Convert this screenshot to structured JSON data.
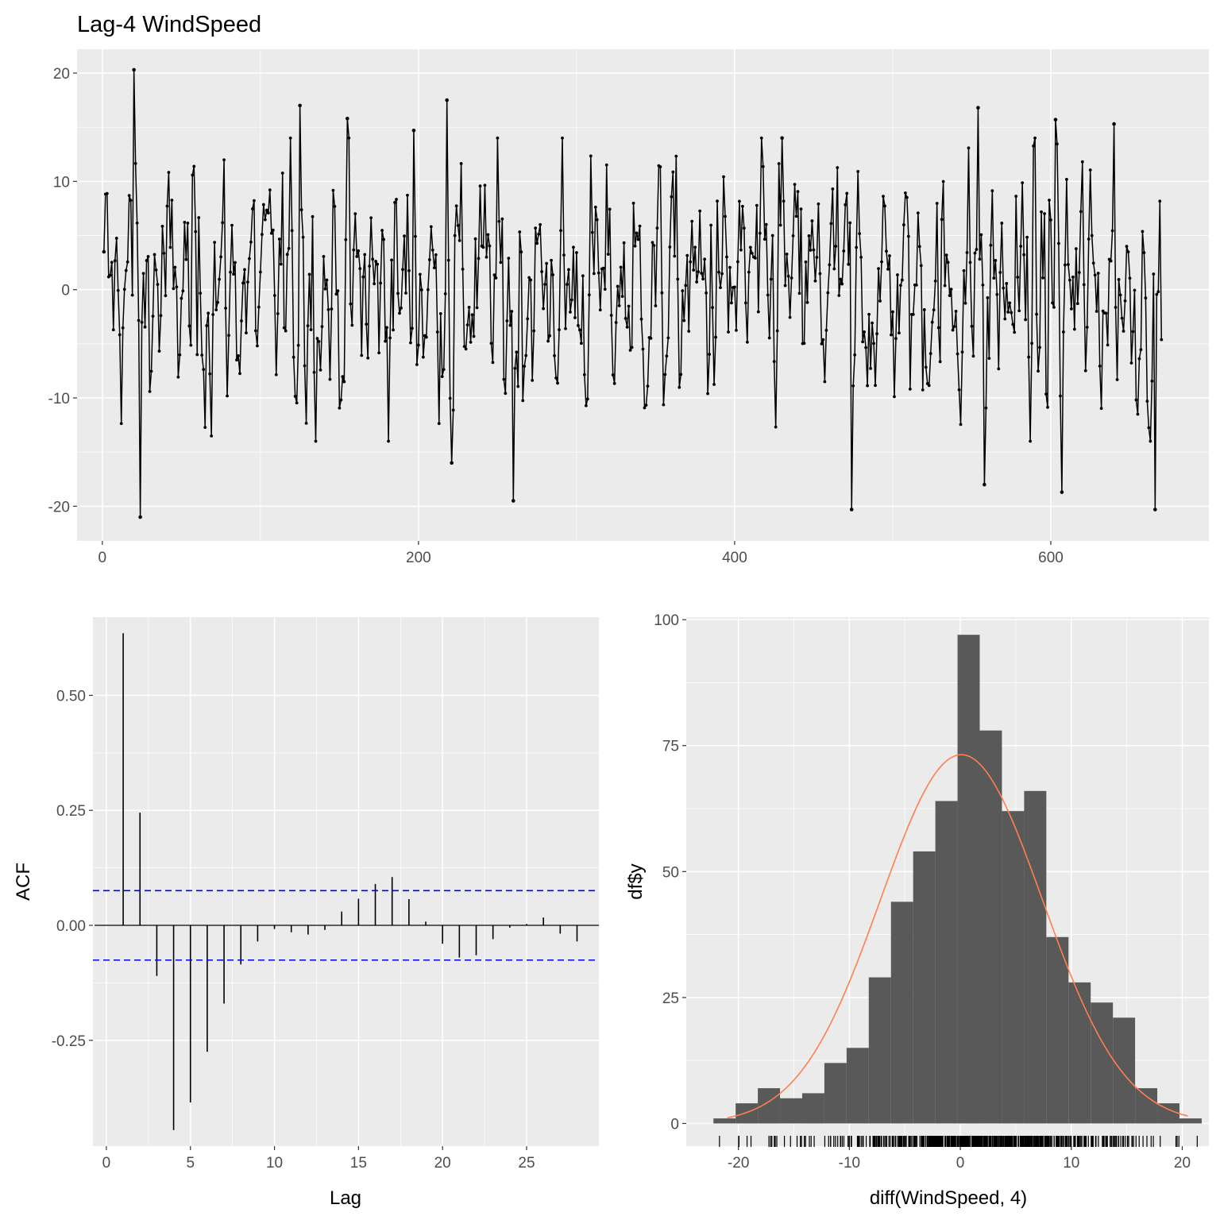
{
  "chart_data": [
    {
      "type": "line",
      "title": "Lag-4 WindSpeed",
      "xlabel": "",
      "ylabel": "",
      "xlim": [
        -16,
        700
      ],
      "ylim": [
        -23.2,
        22.2
      ],
      "x_ticks": [
        0,
        200,
        400,
        600
      ],
      "x_tick_labels": [
        "0",
        "200",
        "400",
        "600"
      ],
      "y_ticks": [
        -20,
        -10,
        0,
        10,
        20
      ],
      "y_tick_labels": [
        "-20",
        "-10",
        "0",
        "10",
        "20"
      ],
      "grid": true,
      "points_marked": true,
      "n_points": 670,
      "x": [
        1,
        20,
        24,
        125,
        155,
        197,
        218,
        221,
        260,
        430,
        474,
        554,
        558,
        603,
        607,
        640,
        666
      ],
      "values": [
        3.5,
        20.3,
        -21,
        17,
        15.8,
        14.7,
        17.5,
        -16,
        -19.5,
        14,
        -20.3,
        16.8,
        -18,
        15.7,
        -18.7,
        15.3,
        -20.3
      ]
    },
    {
      "type": "bar",
      "subtype": "acf",
      "title": "",
      "xlabel": "Lag",
      "ylabel": "ACF",
      "xlim": [
        -0.8,
        29.3
      ],
      "ylim": [
        -0.48,
        0.67
      ],
      "x_ticks": [
        0,
        5,
        10,
        15,
        20,
        25
      ],
      "x_tick_labels": [
        "0",
        "5",
        "10",
        "15",
        "20",
        "25"
      ],
      "y_ticks": [
        -0.25,
        0.0,
        0.25,
        0.5
      ],
      "y_tick_labels": [
        "-0.25",
        "0.00",
        "0.25",
        "0.50"
      ],
      "lags": [
        1,
        2,
        3,
        4,
        5,
        6,
        7,
        8,
        9,
        10,
        11,
        12,
        13,
        14,
        15,
        16,
        17,
        18,
        19,
        20,
        21,
        22,
        23,
        24,
        25,
        26,
        27,
        28
      ],
      "values": [
        0.635,
        0.245,
        -0.11,
        -0.445,
        -0.385,
        -0.275,
        -0.17,
        -0.085,
        -0.035,
        -0.008,
        -0.015,
        -0.02,
        -0.01,
        0.03,
        0.058,
        0.09,
        0.105,
        0.057,
        0.008,
        -0.04,
        -0.07,
        -0.065,
        -0.03,
        -0.005,
        0.003,
        0.017,
        -0.018,
        -0.035
      ],
      "confidence_limit": 0.0755,
      "colors": {
        "bar": "#000000",
        "ci_line": "#0000ff"
      },
      "grid": true
    },
    {
      "type": "bar",
      "subtype": "histogram",
      "title": "",
      "xlabel": "diff(WindSpeed, 4)",
      "ylabel": "df$y",
      "xlim": [
        -24.7,
        22.4
      ],
      "ylim": [
        -4.5,
        100.5
      ],
      "x_ticks": [
        -20,
        -10,
        0,
        10,
        20
      ],
      "x_tick_labels": [
        "-20",
        "-10",
        "0",
        "10",
        "20"
      ],
      "y_ticks": [
        0,
        25,
        50,
        75,
        100
      ],
      "y_tick_labels": [
        "0",
        "25",
        "50",
        "75",
        "100"
      ],
      "bin_edges": [
        -22.25,
        -20.25,
        -18.25,
        -16.25,
        -14.25,
        -12.25,
        -10.25,
        -8.25,
        -6.25,
        -4.25,
        -2.25,
        -0.25,
        1.75,
        3.75,
        5.75,
        7.75,
        9.75,
        11.75,
        13.75,
        15.75,
        17.75,
        19.75,
        21.75
      ],
      "counts": [
        1,
        4,
        7,
        5,
        6,
        12,
        15,
        29,
        44,
        54,
        64,
        97,
        78,
        62,
        66,
        37,
        28,
        24,
        21,
        7,
        4,
        1
      ],
      "normal_curve": {
        "mean": 0.1,
        "sd": 7.3,
        "peak": 73.2,
        "range": [
          -21,
          20.5
        ]
      },
      "colors": {
        "bar": "#595959",
        "curve": "#ff7f50",
        "rug": "#000000"
      },
      "rug": true,
      "grid": true
    }
  ]
}
